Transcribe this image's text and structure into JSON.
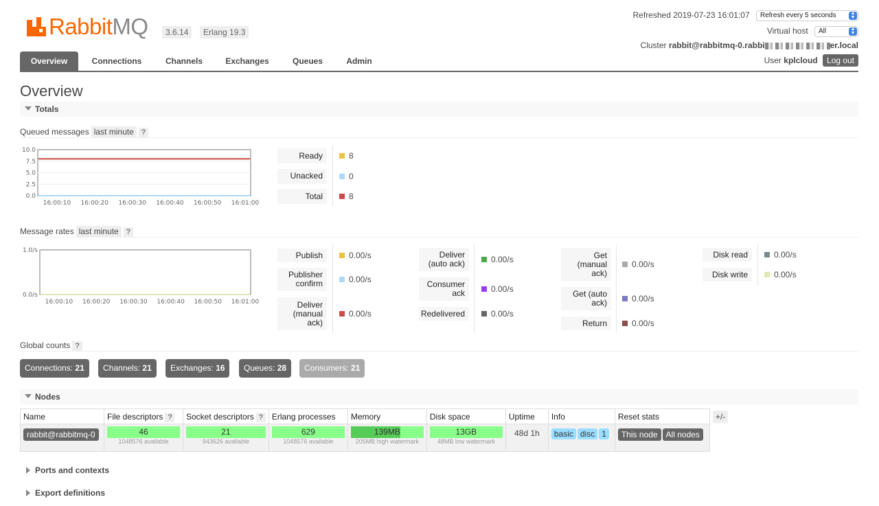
{
  "header": {
    "logo_rabbit": "Rabbit",
    "logo_mq": "MQ",
    "version": "3.6.14",
    "erlang": "Erlang 19.3",
    "refreshed": "Refreshed 2019-07-23 16:01:07",
    "refresh_select": "Refresh every 5 seconds",
    "vhost_label": "Virtual host",
    "vhost_select": "All",
    "cluster_label": "Cluster",
    "cluster_prefix": "rabbit@rabbitmq-0.rabbi",
    "cluster_suffix": "er.local",
    "user_label": "User",
    "user_name": "kplcloud",
    "logout": "Log out"
  },
  "tabs": [
    "Overview",
    "Connections",
    "Channels",
    "Exchanges",
    "Queues",
    "Admin"
  ],
  "page_title": "Overview",
  "totals": {
    "section": "Totals",
    "queued_label": "Queued messages",
    "queued_range": "last minute",
    "help": "?",
    "queued_stats": [
      {
        "label": "Ready",
        "value": "8",
        "color": "#edc240"
      },
      {
        "label": "Unacked",
        "value": "0",
        "color": "#afd8f8"
      },
      {
        "label": "Total",
        "value": "8",
        "color": "#cb4b4b"
      }
    ],
    "rates_label": "Message rates",
    "rates_range": "last minute",
    "rates_col1": [
      {
        "label": "Publish",
        "value": "0.00/s",
        "color": "#edc240"
      },
      {
        "label": "Publisher confirm",
        "value": "0.00/s",
        "color": "#afd8f8"
      },
      {
        "label": "Deliver (manual ack)",
        "value": "0.00/s",
        "color": "#cb4b4b"
      }
    ],
    "rates_col2": [
      {
        "label": "Deliver (auto ack)",
        "value": "0.00/s",
        "color": "#4da74d"
      },
      {
        "label": "Consumer ack",
        "value": "0.00/s",
        "color": "#9440ed"
      },
      {
        "label": "Redelivered",
        "value": "0.00/s",
        "color": "#666666"
      }
    ],
    "rates_col3": [
      {
        "label": "Get (manual ack)",
        "value": "0.00/s",
        "color": "#aaaaaa"
      },
      {
        "label": "Get (auto ack)",
        "value": "0.00/s",
        "color": "#7c79c3"
      },
      {
        "label": "Return",
        "value": "0.00/s",
        "color": "#8d4d4d"
      }
    ],
    "rates_col4": [
      {
        "label": "Disk read",
        "value": "0.00/s",
        "color": "#7a8a8a"
      },
      {
        "label": "Disk write",
        "value": "0.00/s",
        "color": "#e0e8b8"
      }
    ]
  },
  "chart_data": [
    {
      "type": "line",
      "x": [
        "16:00:10",
        "16:00:20",
        "16:00:30",
        "16:00:40",
        "16:00:50",
        "16:01:00"
      ],
      "y_ticks": [
        "10.0",
        "7.5",
        "5.0",
        "2.5",
        "0.0"
      ],
      "ylim": [
        0,
        10
      ],
      "series": [
        {
          "name": "Ready",
          "values": [
            8,
            8,
            8,
            8,
            8,
            8
          ],
          "color": "#edc240"
        },
        {
          "name": "Unacked",
          "values": [
            0,
            0,
            0,
            0,
            0,
            0
          ],
          "color": "#afd8f8"
        },
        {
          "name": "Total",
          "values": [
            8,
            8,
            8,
            8,
            8,
            8
          ],
          "color": "#cb4b4b"
        }
      ]
    },
    {
      "type": "line",
      "x": [
        "16:00:10",
        "16:00:20",
        "16:00:30",
        "16:00:40",
        "16:00:50",
        "16:01:00"
      ],
      "y_ticks": [
        "1.0/s",
        "0.0/s"
      ],
      "ylim": [
        0,
        1
      ],
      "series": [
        {
          "name": "Publish",
          "values": [
            0,
            0,
            0,
            0,
            0,
            0
          ],
          "color": "#edc240"
        },
        {
          "name": "Disk write",
          "values": [
            0,
            0,
            0,
            0,
            0,
            0
          ],
          "color": "#e0e8b8"
        }
      ]
    }
  ],
  "global_counts": {
    "label": "Global counts",
    "items": [
      {
        "label": "Connections:",
        "value": "21"
      },
      {
        "label": "Channels:",
        "value": "21"
      },
      {
        "label": "Exchanges:",
        "value": "16"
      },
      {
        "label": "Queues:",
        "value": "28"
      },
      {
        "label": "Consumers:",
        "value": "21"
      }
    ]
  },
  "nodes": {
    "section": "Nodes",
    "columns": [
      "Name",
      "File descriptors",
      "Socket descriptors",
      "Erlang processes",
      "Memory",
      "Disk space",
      "Uptime",
      "Info",
      "Reset stats"
    ],
    "row": {
      "name": "rabbit@rabbitmq-0",
      "fd": "46",
      "fd_sub": "1048576 available",
      "sd": "21",
      "sd_sub": "943626 available",
      "ep": "629",
      "ep_sub": "1048576 available",
      "mem": "139MB",
      "mem_sub": "205MB high watermark",
      "mem_fraction": 0.68,
      "disk": "13GB",
      "disk_sub": "48MB low watermark",
      "uptime": "48d 1h",
      "info": [
        "basic",
        "disc",
        "1"
      ],
      "reset_this": "This node",
      "reset_all": "All nodes"
    },
    "plusminus": "+/-"
  },
  "ports_section": "Ports and contexts",
  "export_section": "Export definitions"
}
